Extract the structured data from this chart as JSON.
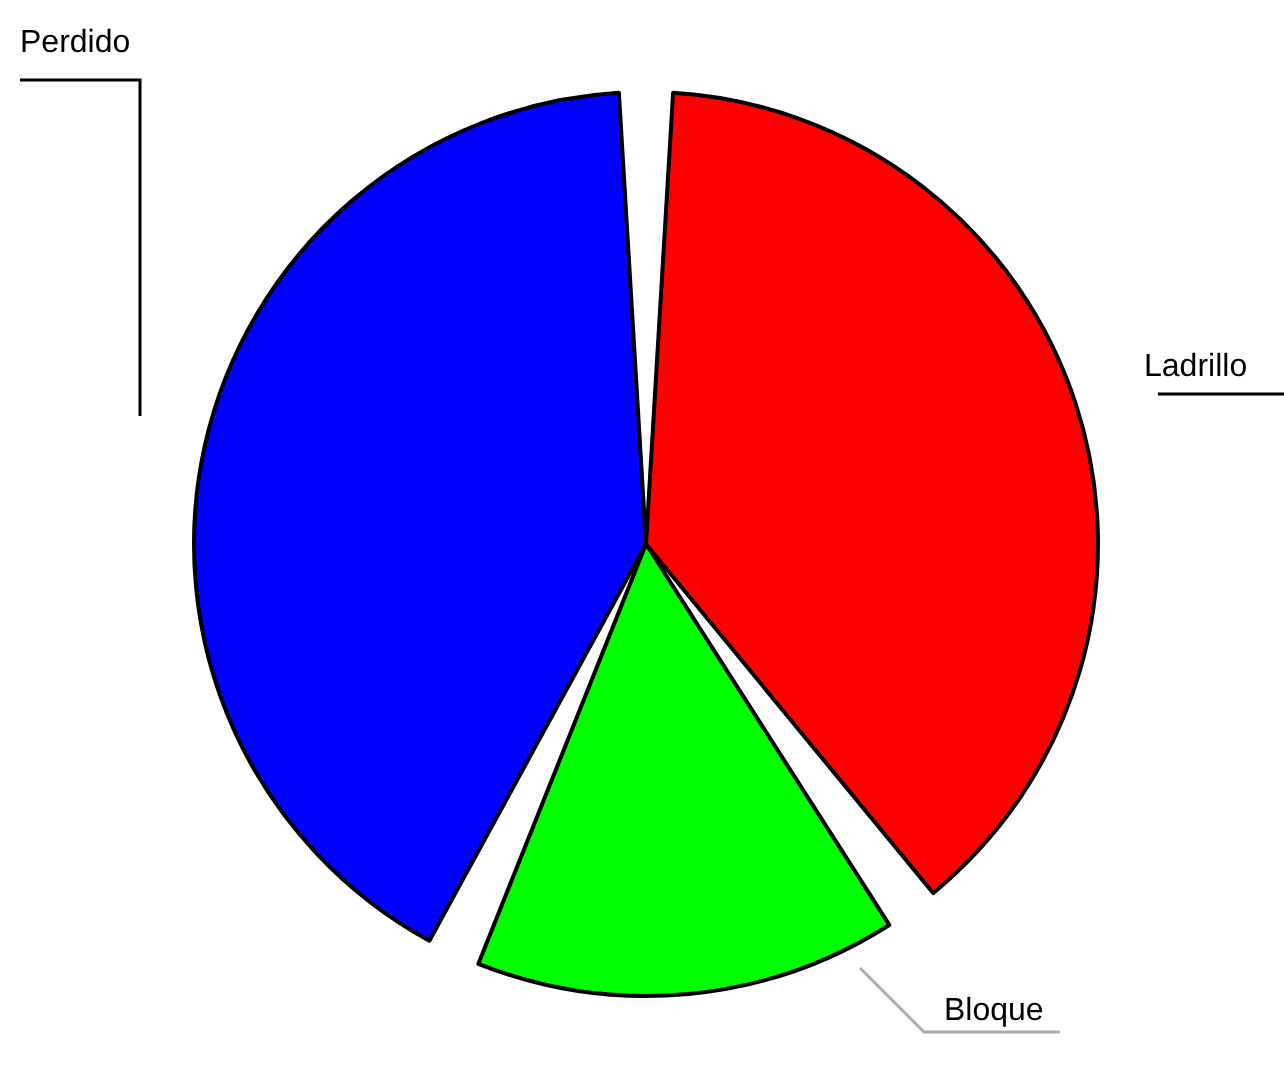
{
  "chart_data": {
    "type": "pie",
    "categories": [
      "Ladrillo",
      "Bloque",
      "Perdido"
    ],
    "values": [
      40,
      17,
      43
    ],
    "colors": [
      "#ff0000",
      "#00ff00",
      "#0000ff"
    ]
  }
}
